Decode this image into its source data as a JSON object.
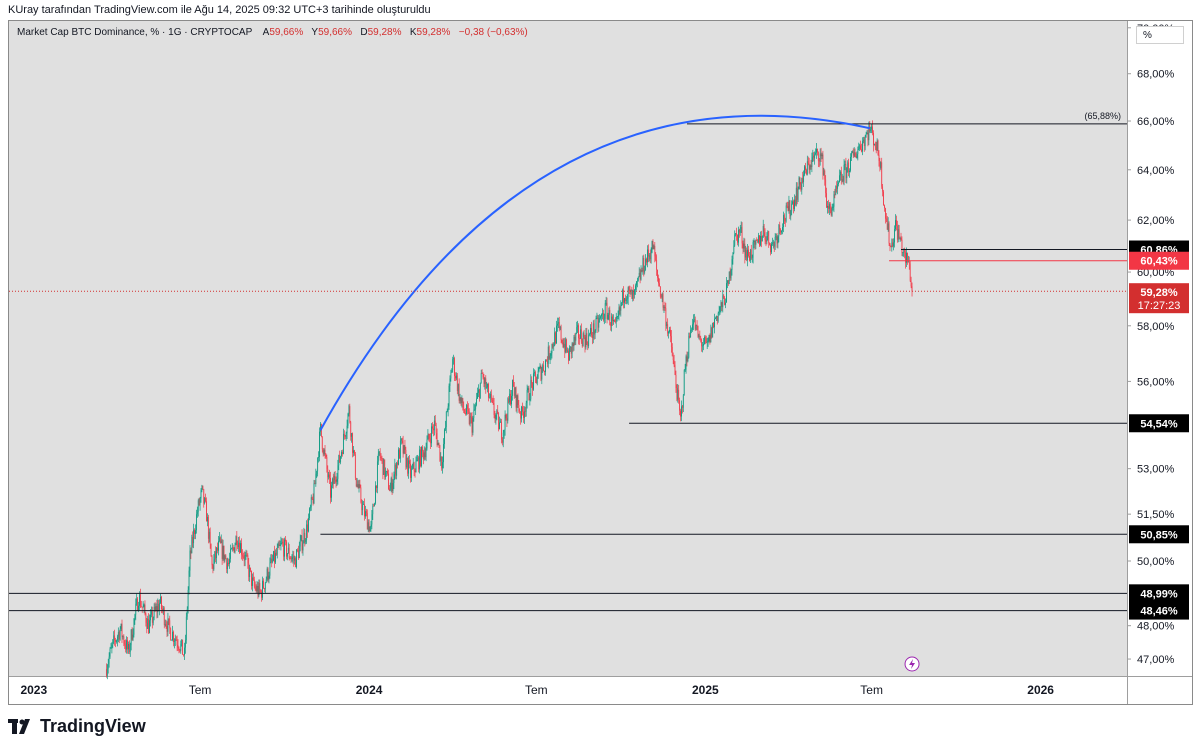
{
  "caption": "KUray tarafından TradingView.com ile Ağu 14, 2025 09:32 UTC+3 tarihinde oluşturuldu",
  "header": {
    "symbol": "Market Cap BTC Dominance, % · 1G · CRYPTOCAP",
    "open_label": "A",
    "open": "59,66%",
    "high_label": "Y",
    "high": "59,66%",
    "low_label": "D",
    "low": "59,28%",
    "close_label": "K",
    "close": "59,28%",
    "change": "−0,38 (−0,63%)"
  },
  "scale_button": "%",
  "brand": "TradingView",
  "chart_data": {
    "type": "candlestick",
    "y_scale": "log",
    "ylim": [
      46.5,
      70.3
    ],
    "x_range": [
      "2022-12-05",
      "2026-04-05"
    ],
    "y_ticks": [
      "47,00%",
      "48,00%",
      "50,00%",
      "51,50%",
      "53,00%",
      "56,00%",
      "58,00%",
      "60,00%",
      "62,00%",
      "64,00%",
      "66,00%",
      "68,00%",
      "70,00%"
    ],
    "y_tick_values": [
      47,
      48,
      50,
      51.5,
      53,
      56,
      58,
      60,
      62,
      64,
      66,
      68,
      70
    ],
    "x_ticks": [
      {
        "date": "2023-01-01",
        "label": "2023",
        "bold": true
      },
      {
        "date": "2023-07-01",
        "label": "Tem",
        "bold": false
      },
      {
        "date": "2024-01-01",
        "label": "2024",
        "bold": true
      },
      {
        "date": "2024-07-01",
        "label": "Tem",
        "bold": false
      },
      {
        "date": "2025-01-01",
        "label": "2025",
        "bold": true
      },
      {
        "date": "2025-07-01",
        "label": "Tem",
        "bold": false
      },
      {
        "date": "2026-01-01",
        "label": "2026",
        "bold": true
      }
    ],
    "price_path": [
      [
        "2023-03-20",
        46.7
      ],
      [
        "2023-03-28",
        47.4
      ],
      [
        "2023-04-05",
        47.9
      ],
      [
        "2023-04-14",
        47.2
      ],
      [
        "2023-04-25",
        48.9
      ],
      [
        "2023-05-06",
        48.0
      ],
      [
        "2023-05-18",
        48.7
      ],
      [
        "2023-05-28",
        47.9
      ],
      [
        "2023-06-08",
        47.5
      ],
      [
        "2023-06-14",
        47.1
      ],
      [
        "2023-06-20",
        50.1
      ],
      [
        "2023-06-28",
        51.6
      ],
      [
        "2023-07-03",
        52.2
      ],
      [
        "2023-07-08",
        51.5
      ],
      [
        "2023-07-14",
        49.8
      ],
      [
        "2023-07-22",
        50.5
      ],
      [
        "2023-08-01",
        49.9
      ],
      [
        "2023-08-10",
        50.8
      ],
      [
        "2023-08-20",
        50.0
      ],
      [
        "2023-08-28",
        49.2
      ],
      [
        "2023-09-05",
        49.0
      ],
      [
        "2023-09-15",
        49.8
      ],
      [
        "2023-09-28",
        50.5
      ],
      [
        "2023-10-12",
        50.0
      ],
      [
        "2023-10-25",
        51.0
      ],
      [
        "2023-11-02",
        52.2
      ],
      [
        "2023-11-09",
        54.3
      ],
      [
        "2023-11-20",
        52.2
      ],
      [
        "2023-11-30",
        53.3
      ],
      [
        "2023-12-10",
        55.0
      ],
      [
        "2023-12-18",
        52.6
      ],
      [
        "2023-12-26",
        51.6
      ],
      [
        "2024-01-03",
        51.0
      ],
      [
        "2024-01-12",
        53.5
      ],
      [
        "2024-01-24",
        52.3
      ],
      [
        "2024-02-05",
        53.8
      ],
      [
        "2024-02-15",
        52.8
      ],
      [
        "2024-03-01",
        53.6
      ],
      [
        "2024-03-12",
        54.5
      ],
      [
        "2024-03-20",
        53.2
      ],
      [
        "2024-04-01",
        56.8
      ],
      [
        "2024-04-10",
        55.2
      ],
      [
        "2024-04-22",
        54.5
      ],
      [
        "2024-05-03",
        56.2
      ],
      [
        "2024-05-15",
        55.0
      ],
      [
        "2024-05-25",
        54.2
      ],
      [
        "2024-06-05",
        55.8
      ],
      [
        "2024-06-15",
        54.8
      ],
      [
        "2024-06-25",
        55.8
      ],
      [
        "2024-07-10",
        56.6
      ],
      [
        "2024-07-25",
        57.9
      ],
      [
        "2024-08-05",
        56.9
      ],
      [
        "2024-08-15",
        57.7
      ],
      [
        "2024-08-25",
        57.5
      ],
      [
        "2024-09-05",
        58.0
      ],
      [
        "2024-09-15",
        58.6
      ],
      [
        "2024-09-25",
        57.8
      ],
      [
        "2024-10-05",
        59.3
      ],
      [
        "2024-10-15",
        59.0
      ],
      [
        "2024-10-25",
        60.2
      ],
      [
        "2024-11-05",
        61.0
      ],
      [
        "2024-11-10",
        59.8
      ],
      [
        "2024-11-18",
        58.5
      ],
      [
        "2024-11-25",
        57.2
      ],
      [
        "2024-12-05",
        54.6
      ],
      [
        "2024-12-10",
        56.5
      ],
      [
        "2024-12-18",
        58.3
      ],
      [
        "2024-12-25",
        57.5
      ],
      [
        "2025-01-03",
        57.2
      ],
      [
        "2025-01-12",
        58.3
      ],
      [
        "2025-01-20",
        58.8
      ],
      [
        "2025-01-26",
        59.5
      ],
      [
        "2025-02-01",
        61.2
      ],
      [
        "2025-02-08",
        61.6
      ],
      [
        "2025-02-15",
        60.6
      ],
      [
        "2025-02-25",
        60.9
      ],
      [
        "2025-03-05",
        61.6
      ],
      [
        "2025-03-15",
        61.0
      ],
      [
        "2025-03-25",
        61.9
      ],
      [
        "2025-04-05",
        62.6
      ],
      [
        "2025-04-15",
        63.5
      ],
      [
        "2025-04-25",
        64.3
      ],
      [
        "2025-05-05",
        64.7
      ],
      [
        "2025-05-10",
        64.0
      ],
      [
        "2025-05-14",
        62.3
      ],
      [
        "2025-05-20",
        62.6
      ],
      [
        "2025-05-28",
        63.6
      ],
      [
        "2025-06-05",
        64.1
      ],
      [
        "2025-06-15",
        64.8
      ],
      [
        "2025-06-25",
        65.4
      ],
      [
        "2025-06-29",
        65.7
      ],
      [
        "2025-07-05",
        65.1
      ],
      [
        "2025-07-10",
        64.4
      ],
      [
        "2025-07-16",
        62.2
      ],
      [
        "2025-07-22",
        60.9
      ],
      [
        "2025-07-27",
        61.8
      ],
      [
        "2025-08-02",
        61.1
      ],
      [
        "2025-08-06",
        60.5
      ],
      [
        "2025-08-10",
        60.4
      ],
      [
        "2025-08-13",
        59.66
      ],
      [
        "2025-08-14",
        59.28
      ]
    ],
    "arc": {
      "start": [
        "2023-11-09",
        54.3
      ],
      "end": [
        "2025-06-29",
        65.7
      ],
      "color": "#2962ff"
    },
    "levels": [
      {
        "value": 65.88,
        "from": "2024-12-12",
        "text": "(65,88%)",
        "color": "#131722"
      },
      {
        "value": 60.86,
        "from": "2025-08-02",
        "text": "60,86%",
        "color": "#131722",
        "badge_bg": "#000000"
      },
      {
        "value": 60.43,
        "from": "2025-07-20",
        "text": "60,43%",
        "color": "#f23645",
        "badge_bg": "#f23645"
      },
      {
        "value": 54.54,
        "from": "2024-10-10",
        "text": "54,54%",
        "color": "#131722",
        "badge_bg": "#000000"
      },
      {
        "value": 50.85,
        "from": "2023-11-09",
        "text": "50,85%",
        "color": "#131722",
        "badge_bg": "#000000"
      },
      {
        "value": 48.99,
        "from": "2022-12-05",
        "text": "48,99%",
        "color": "#131722",
        "badge_bg": "#000000"
      },
      {
        "value": 48.46,
        "from": "2022-12-05",
        "text": "48,46%",
        "color": "#131722",
        "badge_bg": "#000000"
      }
    ],
    "last_price": {
      "value": 59.28,
      "text": "59,28%",
      "countdown": "17:27:23",
      "color": "#d32f2f"
    },
    "colors": {
      "up": "#089981",
      "down": "#f23645",
      "background": "#e0e0e0"
    }
  }
}
